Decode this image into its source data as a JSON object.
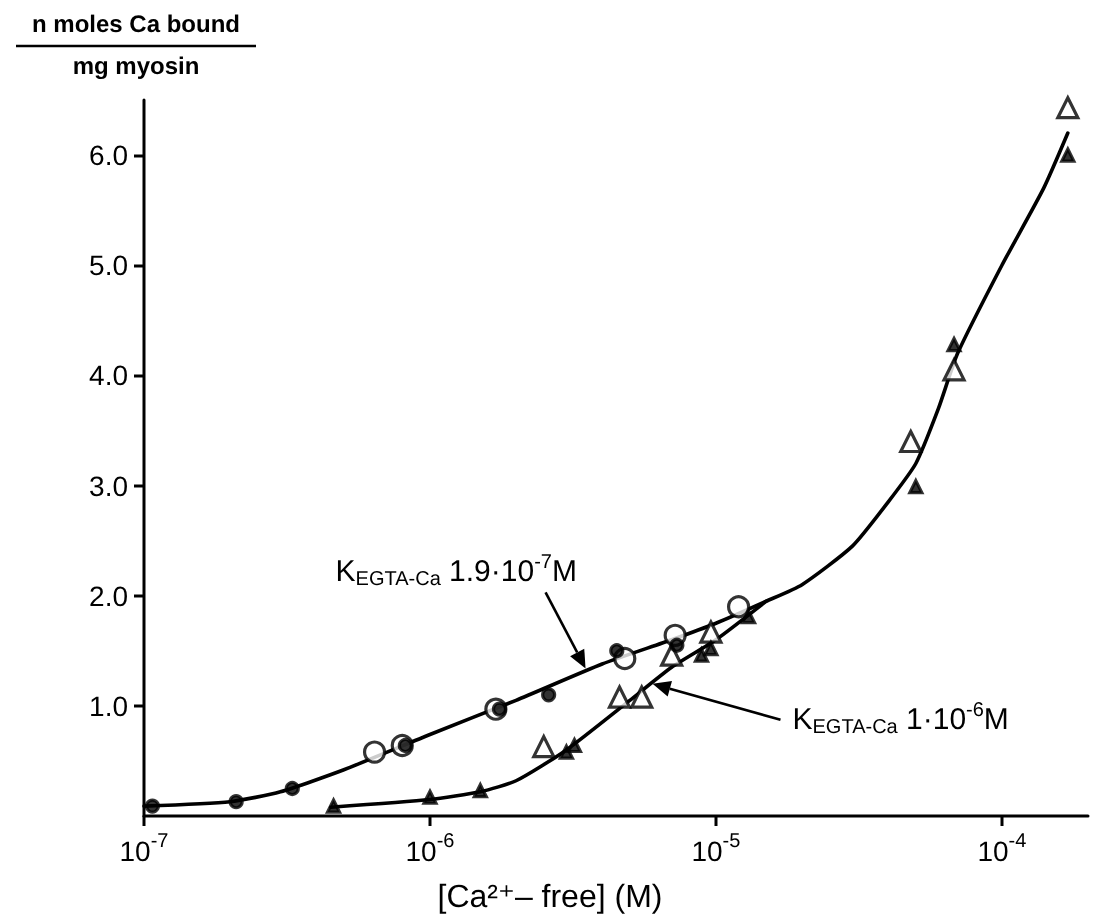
{
  "chart_data": {
    "type": "scatter",
    "xlabel": "[Ca²⁺– free] (M)",
    "ylabel": "n moles Ca bound\nmg myosin",
    "log": "x",
    "xlim": [
      1e-07,
      0.0002
    ],
    "xticks": [
      {
        "value": 1e-07,
        "label": "10$^{-7}$"
      },
      {
        "value": 1e-06,
        "label": "10$^{-6}$"
      },
      {
        "value": 1e-05,
        "label": "10$^{-5}$"
      },
      {
        "value": 0.0001,
        "label": "10$^{-4}$"
      }
    ],
    "ylim": [
      0,
      6.5
    ],
    "yticks": [
      {
        "value": 1,
        "label": "1.0"
      },
      {
        "value": 2,
        "label": "2.0"
      },
      {
        "value": 3,
        "label": "3.0"
      },
      {
        "value": 4,
        "label": "4.0"
      },
      {
        "value": 5,
        "label": "5.0"
      },
      {
        "value": 6,
        "label": "6.0"
      }
    ],
    "grid": false,
    "series": [
      {
        "type": "line",
        "marker": "none",
        "line_style": "solid",
        "color": "#000000",
        "x": [
          1e-07,
          2e-07,
          3e-07,
          5e-07,
          1e-06,
          2e-06,
          4e-06,
          7e-06,
          1e-05,
          1.5e-05,
          2e-05,
          3e-05,
          4e-05,
          5e-05,
          6e-05,
          7e-05,
          0.0001,
          0.00014,
          0.00017
        ],
        "values": [
          0.09,
          0.13,
          0.22,
          0.42,
          0.74,
          1.05,
          1.38,
          1.6,
          1.75,
          1.95,
          2.1,
          2.45,
          2.85,
          3.2,
          3.7,
          4.2,
          5.0,
          5.7,
          6.2
        ]
      },
      {
        "type": "line",
        "marker": "none",
        "line_style": "solid",
        "color": "#000000",
        "x": [
          4.5e-07,
          1e-06,
          1.5e-06,
          2e-06,
          3e-06,
          5e-06,
          7e-06,
          1e-05,
          1.5e-05
        ],
        "values": [
          0.08,
          0.15,
          0.22,
          0.32,
          0.6,
          1.05,
          1.35,
          1.6,
          1.95
        ]
      },
      {
        "marker": "circle",
        "color": "#000000",
        "x": [
          1.07e-07,
          2.1e-07,
          3.3e-07,
          8.2e-07,
          1.75e-06,
          2.6e-06,
          4.5e-06,
          7.3e-06
        ],
        "values": [
          0.09,
          0.13,
          0.25,
          0.64,
          0.97,
          1.1,
          1.5,
          1.55
        ]
      },
      {
        "marker": "circle",
        "color": "#ffffff",
        "x": [
          6.4e-07,
          8e-07,
          1.7e-06,
          4.8e-06,
          7.2e-06,
          1.2e-05
        ],
        "values": [
          0.58,
          0.64,
          0.97,
          1.43,
          1.64,
          1.9
        ]
      },
      {
        "marker": "triangle",
        "color": "#000000",
        "x": [
          4.6e-07,
          1e-06,
          1.5e-06,
          3e-06,
          3.2e-06,
          8.9e-06,
          9.6e-06,
          1.3e-05,
          5e-05,
          6.8e-05,
          0.00017
        ],
        "values": [
          0.09,
          0.17,
          0.23,
          0.58,
          0.64,
          1.46,
          1.52,
          1.81,
          2.99,
          4.28,
          6.0
        ]
      },
      {
        "marker": "triangle",
        "color": "#ffffff",
        "x": [
          2.5e-06,
          4.6e-06,
          5.5e-06,
          7e-06,
          9.6e-06,
          4.8e-05,
          6.8e-05,
          0.00017
        ],
        "values": [
          0.63,
          1.08,
          1.08,
          1.46,
          1.67,
          3.4,
          4.05,
          6.43
        ]
      }
    ],
    "annotations": [
      {
        "text": "K$_{EGTA-Ca}$ 1.9·10$^{-7}$M",
        "x": 3.5e-06,
        "y": 1.34
      },
      {
        "text": "K$_{EGTA-Ca}$ 1·10$^{-6}$M",
        "x": 6e-06,
        "y": 1.2
      }
    ]
  }
}
